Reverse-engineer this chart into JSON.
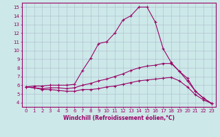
{
  "xlabel": "Windchill (Refroidissement éolien,°C)",
  "background_color": "#cce8e8",
  "line_color": "#990066",
  "grid_color": "#aabbcc",
  "xlim": [
    -0.5,
    23.5
  ],
  "ylim": [
    3.5,
    15.5
  ],
  "xticks": [
    0,
    1,
    2,
    3,
    4,
    5,
    6,
    7,
    8,
    9,
    10,
    11,
    12,
    13,
    14,
    15,
    16,
    17,
    18,
    19,
    20,
    21,
    22,
    23
  ],
  "yticks": [
    4,
    5,
    6,
    7,
    8,
    9,
    10,
    11,
    12,
    13,
    14,
    15
  ],
  "line1_x": [
    0,
    1,
    2,
    3,
    4,
    5,
    6,
    7,
    8,
    9,
    10,
    11,
    12,
    13,
    14,
    15,
    16,
    17,
    18,
    19,
    20,
    21,
    22,
    23
  ],
  "line1_y": [
    5.8,
    5.9,
    5.9,
    6.0,
    6.0,
    6.0,
    6.1,
    7.7,
    9.1,
    10.8,
    11.0,
    12.0,
    13.5,
    14.0,
    15.0,
    15.0,
    13.3,
    10.2,
    8.6,
    7.6,
    6.8,
    5.3,
    4.5,
    3.9
  ],
  "line2_x": [
    0,
    1,
    2,
    3,
    4,
    5,
    6,
    7,
    8,
    9,
    10,
    11,
    12,
    13,
    14,
    15,
    16,
    17,
    18,
    19,
    20,
    21,
    22,
    23
  ],
  "line2_y": [
    5.8,
    5.7,
    5.6,
    5.7,
    5.7,
    5.6,
    5.7,
    6.0,
    6.2,
    6.5,
    6.7,
    7.0,
    7.3,
    7.7,
    8.0,
    8.2,
    8.3,
    8.5,
    8.5,
    7.6,
    6.5,
    5.3,
    4.5,
    3.9
  ],
  "line3_x": [
    0,
    1,
    2,
    3,
    4,
    5,
    6,
    7,
    8,
    9,
    10,
    11,
    12,
    13,
    14,
    15,
    16,
    17,
    18,
    19,
    20,
    21,
    22,
    23
  ],
  "line3_y": [
    5.8,
    5.7,
    5.5,
    5.5,
    5.4,
    5.3,
    5.3,
    5.5,
    5.5,
    5.6,
    5.8,
    5.9,
    6.1,
    6.3,
    6.5,
    6.6,
    6.7,
    6.8,
    6.9,
    6.5,
    5.8,
    4.9,
    4.3,
    3.9
  ],
  "tick_fontsize": 5.0,
  "xlabel_fontsize": 5.5,
  "marker_size": 3.0,
  "line_width": 0.8
}
